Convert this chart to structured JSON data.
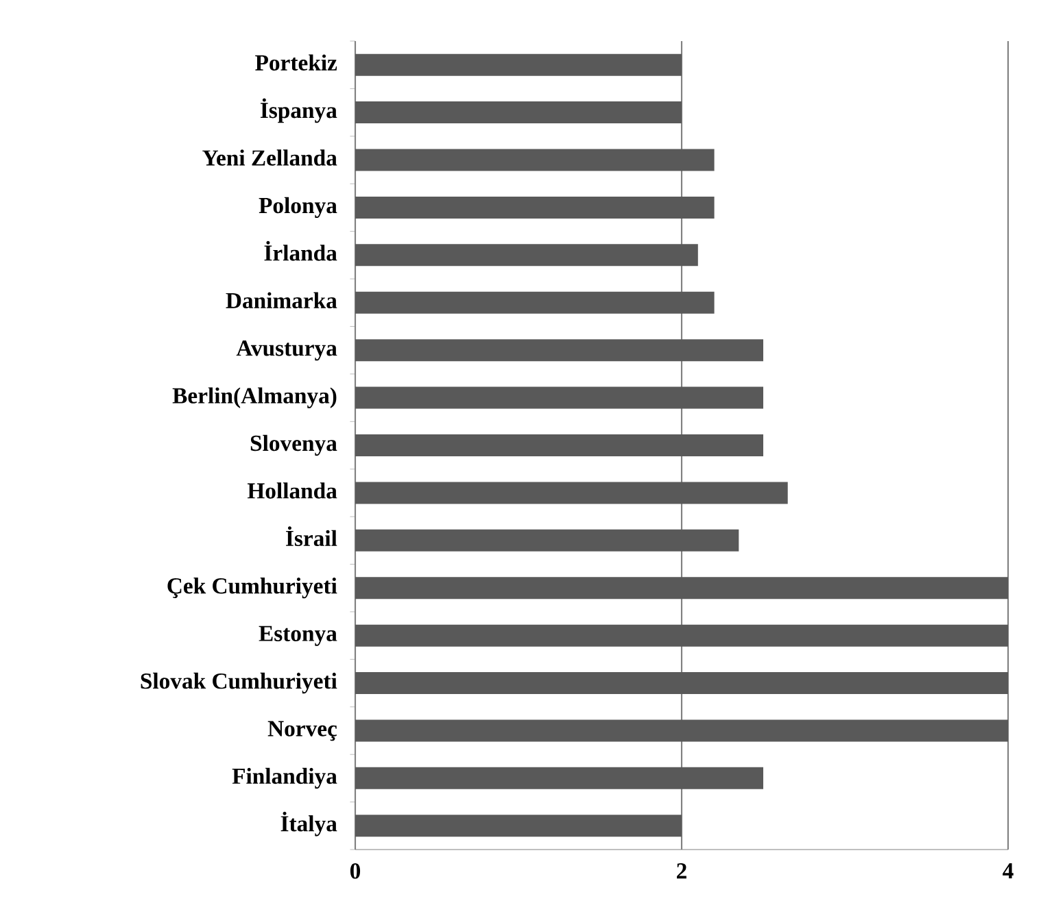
{
  "chart_data": {
    "type": "bar",
    "orientation": "horizontal",
    "categories": [
      "Portekiz",
      "İspanya",
      "Yeni Zellanda",
      "Polonya",
      "İrlanda",
      "Danimarka",
      "Avusturya",
      "Berlin(Almanya)",
      "Slovenya",
      "Hollanda",
      "İsrail",
      "Çek Cumhuriyeti",
      "Estonya",
      "Slovak Cumhuriyeti",
      "Norveç",
      "Finlandiya",
      "İtalya"
    ],
    "values": [
      2.0,
      2.0,
      2.2,
      2.2,
      2.1,
      2.2,
      2.5,
      2.5,
      2.5,
      2.65,
      2.35,
      4.0,
      4.0,
      4.0,
      4.0,
      2.5,
      2.0
    ],
    "color": "#595959",
    "xlim": [
      0,
      4
    ],
    "xticks": [
      0,
      2,
      4
    ],
    "grid": "x"
  }
}
